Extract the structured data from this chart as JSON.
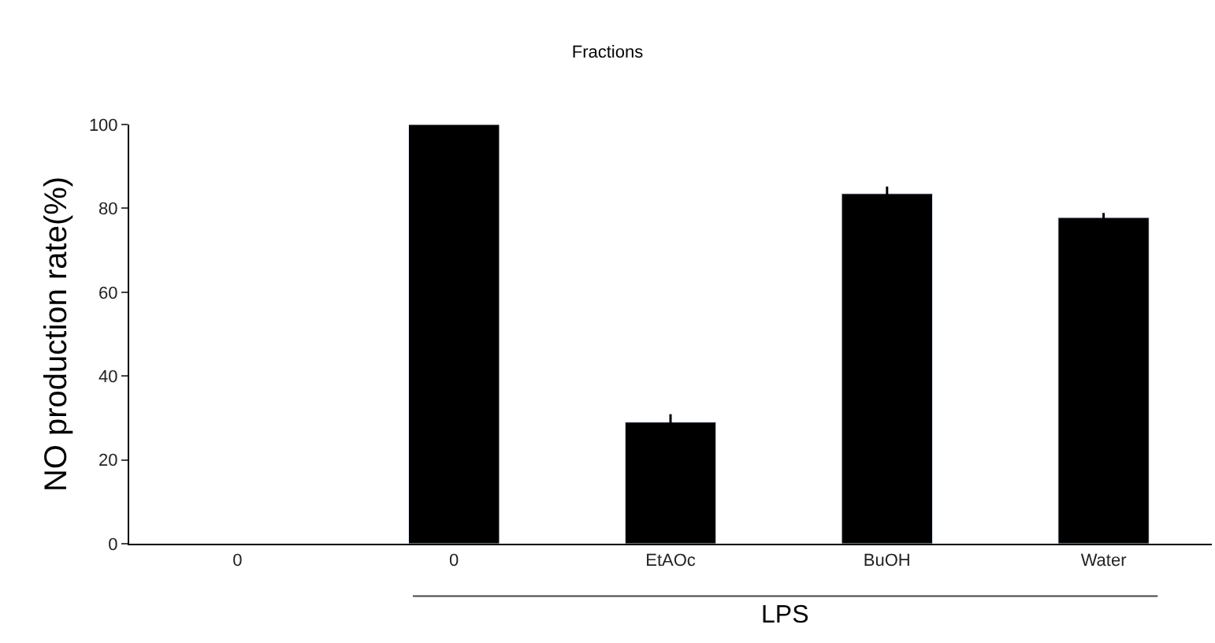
{
  "chart_data": {
    "type": "bar",
    "title": "Fractions",
    "ylabel": "NO production rate(%)",
    "categories": [
      "0",
      "0",
      "EtAOc",
      "BuOH",
      "Water"
    ],
    "values": [
      null,
      100,
      29,
      83.5,
      77.8
    ],
    "errors": [
      null,
      null,
      1.9,
      1.7,
      1.1
    ],
    "color": "#000000",
    "ylim": [
      0,
      100
    ],
    "yticks": [
      0,
      20,
      40,
      60,
      80,
      100
    ],
    "legend": false,
    "annotations": [
      "LPS"
    ]
  }
}
